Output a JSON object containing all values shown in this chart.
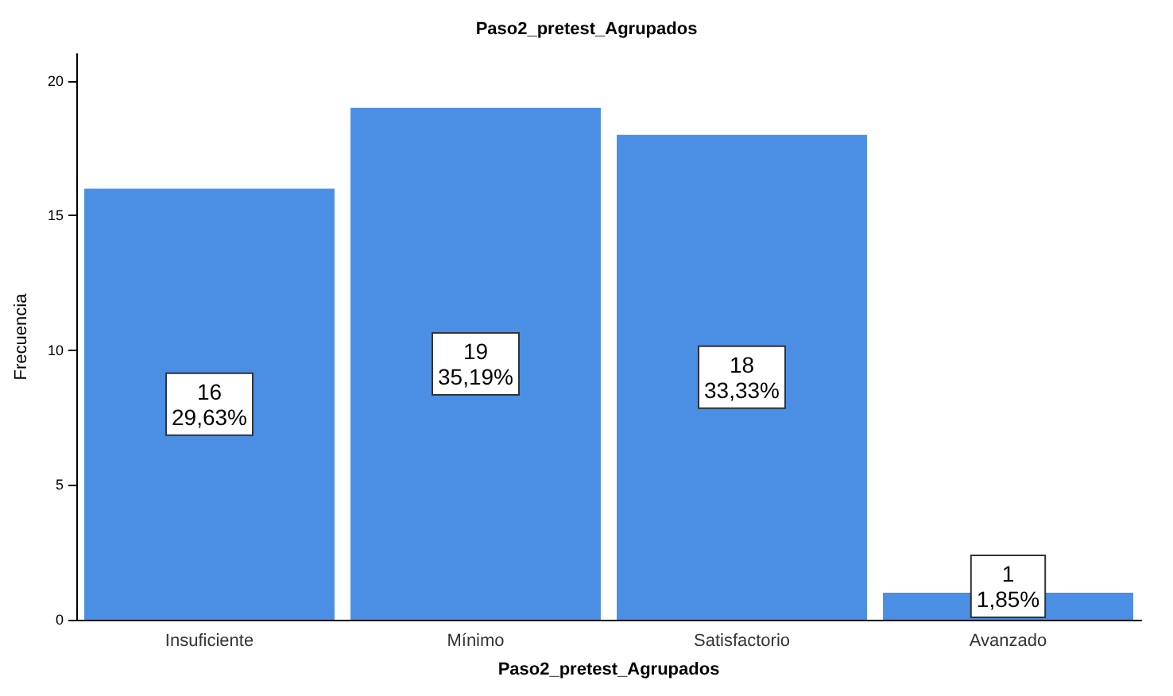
{
  "chart_data": {
    "type": "bar",
    "title": "Paso2_pretest_Agrupados",
    "xlabel": "Paso2_pretest_Agrupados",
    "ylabel": "Frecuencia",
    "categories": [
      "Insuficiente",
      "Mínimo",
      "Satisfactorio",
      "Avanzado"
    ],
    "values": [
      16,
      19,
      18,
      1
    ],
    "value_labels": [
      "16\n29,63%",
      "19\n35,19%",
      "18\n33,33%",
      "1\n1,85%"
    ],
    "color": "#4a8fe3",
    "ylim": [
      0,
      21
    ],
    "yticks": [
      0,
      5,
      10,
      15,
      20
    ],
    "grid": false
  }
}
